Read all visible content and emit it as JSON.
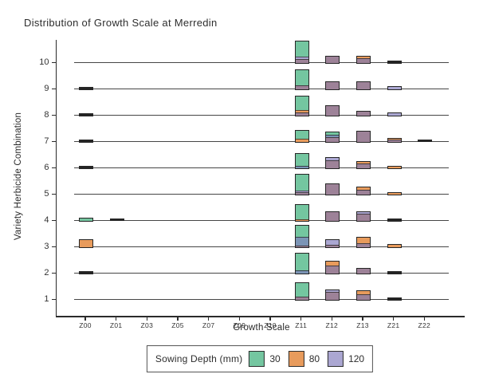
{
  "chart_data": {
    "type": "bar",
    "subtype": "ridgeline-stacked-histogram",
    "title": "Distribution of Growth Scale at Merredin",
    "xlabel": "Growth Scale",
    "ylabel": "Variety Herbicide Combination",
    "x_categories": [
      "Z00",
      "Z01",
      "Z03",
      "Z05",
      "Z07",
      "Z09",
      "Z10",
      "Z11",
      "Z12",
      "Z13",
      "Z21",
      "Z22"
    ],
    "y_ticks": [
      "1",
      "2",
      "3",
      "4",
      "5",
      "6",
      "7",
      "8",
      "9",
      "10"
    ],
    "grid": "off",
    "legend_position": "bottom",
    "colors": {
      "teal": "#74C6A0",
      "orange": "#E89B5C",
      "lavender": "#ABA7D2",
      "mauve": "#9D8298",
      "steel": "#7B94B5",
      "dark": "#242424"
    },
    "legend": {
      "title": "Sowing Depth (mm)",
      "entries": [
        {
          "label": "30",
          "color_key": "teal"
        },
        {
          "label": "80",
          "color_key": "orange"
        },
        {
          "label": "120",
          "color_key": "lavender"
        }
      ]
    },
    "bar_height_units": "pixels above row baseline (estimated)",
    "rows": [
      {
        "y": 1,
        "bars": [
          {
            "x": "Z11",
            "segments": [
              [
                "mauve",
                4
              ],
              [
                "teal",
                17
              ]
            ]
          },
          {
            "x": "Z12",
            "segments": [
              [
                "mauve",
                10
              ],
              [
                "lavender",
                2
              ]
            ]
          },
          {
            "x": "Z13",
            "segments": [
              [
                "mauve",
                7
              ],
              [
                "orange",
                4
              ]
            ]
          },
          {
            "x": "Z21",
            "segments": [
              [
                "dark",
                1.5
              ]
            ]
          }
        ]
      },
      {
        "y": 2,
        "bars": [
          {
            "x": "Z00",
            "segments": [
              [
                "dark",
                1.5
              ]
            ]
          },
          {
            "x": "Z11",
            "segments": [
              [
                "steel",
                4
              ],
              [
                "teal",
                21
              ]
            ]
          },
          {
            "x": "Z12",
            "segments": [
              [
                "mauve",
                10
              ],
              [
                "orange",
                5
              ]
            ]
          },
          {
            "x": "Z13",
            "segments": [
              [
                "mauve",
                6
              ]
            ]
          },
          {
            "x": "Z21",
            "segments": [
              [
                "dark",
                1.5
              ]
            ]
          }
        ]
      },
      {
        "y": 3,
        "bars": [
          {
            "x": "Z00",
            "segments": [
              [
                "orange",
                9
              ]
            ]
          },
          {
            "x": "Z11",
            "segments": [
              [
                "mauve",
                1.5
              ],
              [
                "steel",
                11
              ],
              [
                "teal",
                14
              ]
            ]
          },
          {
            "x": "Z12",
            "segments": [
              [
                "mauve",
                3
              ],
              [
                "lavender",
                6
              ]
            ]
          },
          {
            "x": "Z13",
            "segments": [
              [
                "mauve",
                5
              ],
              [
                "orange",
                7
              ]
            ]
          },
          {
            "x": "Z21",
            "segments": [
              [
                "orange",
                2.5
              ]
            ]
          }
        ]
      },
      {
        "y": 4,
        "bars": [
          {
            "x": "Z00",
            "segments": [
              [
                "teal",
                2.5
              ]
            ]
          },
          {
            "x": "Z01",
            "segments": [
              [
                "dark",
                1.2
              ]
            ]
          },
          {
            "x": "Z11",
            "segments": [
              [
                "orange",
                2
              ],
              [
                "teal",
                18
              ]
            ]
          },
          {
            "x": "Z12",
            "segments": [
              [
                "mauve",
                11
              ]
            ]
          },
          {
            "x": "Z13",
            "segments": [
              [
                "mauve",
                9
              ],
              [
                "lavender",
                2
              ]
            ]
          },
          {
            "x": "Z21",
            "segments": [
              [
                "dark",
                1.5
              ]
            ]
          }
        ]
      },
      {
        "y": 5,
        "bars": [
          {
            "x": "Z11",
            "segments": [
              [
                "mauve",
                3
              ],
              [
                "lavender",
                2
              ],
              [
                "teal",
                20
              ]
            ]
          },
          {
            "x": "Z12",
            "segments": [
              [
                "mauve",
                13
              ]
            ]
          },
          {
            "x": "Z13",
            "segments": [
              [
                "mauve",
                6
              ],
              [
                "orange",
                2.5
              ]
            ]
          },
          {
            "x": "Z21",
            "segments": [
              [
                "orange",
                2
              ]
            ]
          }
        ]
      },
      {
        "y": 6,
        "bars": [
          {
            "x": "Z00",
            "segments": [
              [
                "dark",
                1.5
              ]
            ]
          },
          {
            "x": "Z11",
            "segments": [
              [
                "steel",
                2.5
              ],
              [
                "teal",
                15
              ]
            ]
          },
          {
            "x": "Z12",
            "segments": [
              [
                "mauve",
                10
              ],
              [
                "lavender",
                3
              ]
            ]
          },
          {
            "x": "Z13",
            "segments": [
              [
                "mauve",
                6
              ],
              [
                "orange",
                2
              ]
            ]
          },
          {
            "x": "Z21",
            "segments": [
              [
                "orange",
                2
              ]
            ]
          }
        ]
      },
      {
        "y": 7,
        "bars": [
          {
            "x": "Z00",
            "segments": [
              [
                "dark",
                1.5
              ]
            ]
          },
          {
            "x": "Z11",
            "segments": [
              [
                "orange",
                4
              ],
              [
                "teal",
                10
              ]
            ]
          },
          {
            "x": "Z12",
            "segments": [
              [
                "mauve",
                6
              ],
              [
                "steel",
                2.5
              ],
              [
                "teal",
                3
              ]
            ]
          },
          {
            "x": "Z13",
            "segments": [
              [
                "mauve",
                13
              ]
            ]
          },
          {
            "x": "Z21",
            "segments": [
              [
                "mauve",
                2.5
              ],
              [
                "orange",
                1.5
              ]
            ]
          },
          {
            "x": "Z22",
            "segments": [
              [
                "dark",
                1.2
              ]
            ]
          }
        ]
      },
      {
        "y": 8,
        "bars": [
          {
            "x": "Z00",
            "segments": [
              [
                "dark",
                1.5
              ]
            ]
          },
          {
            "x": "Z11",
            "segments": [
              [
                "mauve",
                4
              ],
              [
                "orange",
                3
              ],
              [
                "teal",
                17
              ]
            ]
          },
          {
            "x": "Z12",
            "segments": [
              [
                "mauve",
                12
              ]
            ]
          },
          {
            "x": "Z13",
            "segments": [
              [
                "mauve",
                5
              ]
            ]
          },
          {
            "x": "Z21",
            "segments": [
              [
                "lavender",
                2.5
              ]
            ]
          }
        ]
      },
      {
        "y": 9,
        "bars": [
          {
            "x": "Z00",
            "segments": [
              [
                "dark",
                1.5
              ]
            ]
          },
          {
            "x": "Z11",
            "segments": [
              [
                "mauve",
                5
              ],
              [
                "teal",
                19
              ]
            ]
          },
          {
            "x": "Z12",
            "segments": [
              [
                "mauve",
                9
              ]
            ]
          },
          {
            "x": "Z13",
            "segments": [
              [
                "mauve",
                9
              ]
            ]
          },
          {
            "x": "Z21",
            "segments": [
              [
                "lavender",
                2.5
              ]
            ]
          }
        ]
      },
      {
        "y": 10,
        "bars": [
          {
            "x": "Z11",
            "segments": [
              [
                "mauve",
                5
              ],
              [
                "lavender",
                3
              ],
              [
                "teal",
                19
              ]
            ]
          },
          {
            "x": "Z12",
            "segments": [
              [
                "mauve",
                8
              ]
            ]
          },
          {
            "x": "Z13",
            "segments": [
              [
                "mauve",
                6
              ],
              [
                "orange",
                2
              ]
            ]
          },
          {
            "x": "Z21",
            "segments": [
              [
                "dark",
                1.5
              ]
            ]
          }
        ]
      }
    ]
  }
}
